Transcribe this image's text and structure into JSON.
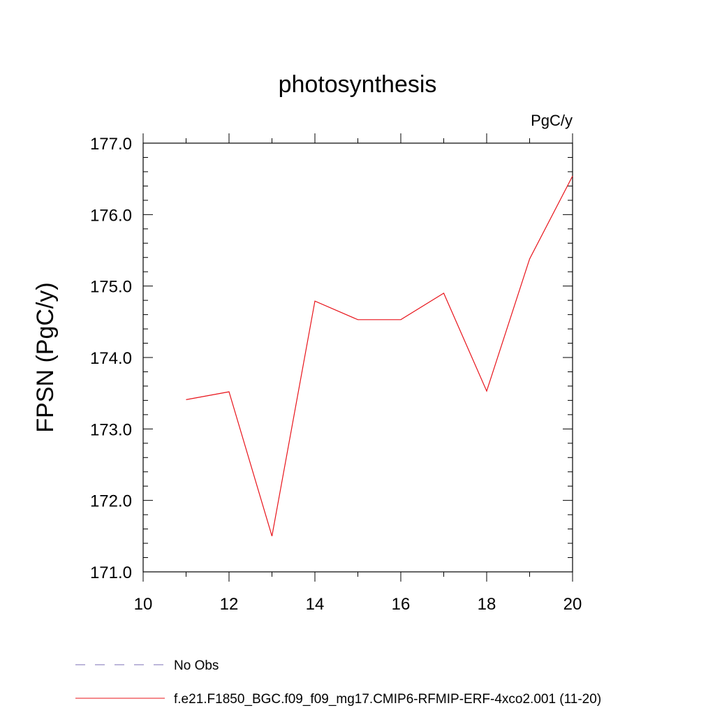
{
  "chart_data": {
    "type": "line",
    "title": "photosynthesis",
    "units_label": "PgC/y",
    "xlabel": "",
    "ylabel": "FPSN  (PgC/y)",
    "xlim": [
      10,
      20
    ],
    "ylim": [
      171.0,
      177.0
    ],
    "x_ticks": [
      10,
      12,
      14,
      16,
      18,
      20
    ],
    "x_tick_labels": [
      "10",
      "12",
      "14",
      "16",
      "18",
      "20"
    ],
    "y_ticks": [
      171.0,
      172.0,
      173.0,
      174.0,
      175.0,
      176.0,
      177.0
    ],
    "y_tick_labels": [
      "171.0",
      "172.0",
      "173.0",
      "174.0",
      "175.0",
      "176.0",
      "177.0"
    ],
    "grid": false,
    "legend_position": "bottom",
    "series": [
      {
        "name": "f.e21.F1850_BGC.f09_f09_mg17.CMIP6-RFMIP-ERF-4xco2.001 (11-20)",
        "color": "#e8141b",
        "style": "solid",
        "x": [
          11,
          12,
          13,
          14,
          15,
          16,
          17,
          18,
          19,
          20
        ],
        "y": [
          173.41,
          173.52,
          171.5,
          174.79,
          174.53,
          174.53,
          174.9,
          173.53,
          175.38,
          176.54
        ]
      }
    ],
    "legend": [
      {
        "label": "No Obs",
        "color": "#7b6fb5",
        "style": "dashed"
      },
      {
        "label": "f.e21.F1850_BGC.f09_f09_mg17.CMIP6-RFMIP-ERF-4xco2.001 (11-20)",
        "color": "#e8141b",
        "style": "solid"
      }
    ]
  }
}
